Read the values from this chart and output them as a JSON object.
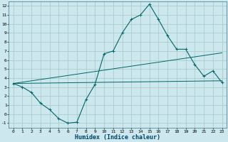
{
  "xlabel": "Humidex (Indice chaleur)",
  "bg_color": "#cce8ee",
  "grid_color": "#aacccc",
  "line_color": "#006666",
  "xlim": [
    -0.5,
    23.5
  ],
  "ylim": [
    -1.5,
    12.5
  ],
  "xticks": [
    0,
    1,
    2,
    3,
    4,
    5,
    6,
    7,
    8,
    9,
    10,
    11,
    12,
    13,
    14,
    15,
    16,
    17,
    18,
    19,
    20,
    21,
    22,
    23
  ],
  "yticks": [
    -1,
    0,
    1,
    2,
    3,
    4,
    5,
    6,
    7,
    8,
    9,
    10,
    11,
    12
  ],
  "curve1_x": [
    0,
    1,
    2,
    3,
    4,
    5,
    6,
    7,
    8,
    9,
    10,
    11,
    12,
    13,
    14,
    15,
    16,
    17,
    18,
    19,
    20,
    21,
    22,
    23
  ],
  "curve1_y": [
    3.4,
    3.0,
    2.4,
    1.2,
    0.5,
    -0.5,
    -1.0,
    -0.9,
    1.6,
    3.3,
    6.7,
    7.0,
    9.0,
    10.5,
    11.0,
    12.2,
    10.5,
    8.7,
    7.2,
    7.2,
    5.5,
    4.2,
    4.8,
    3.5
  ],
  "curve2_x": [
    0,
    23
  ],
  "curve2_y": [
    3.4,
    6.8
  ],
  "curve3_x": [
    0,
    23
  ],
  "curve3_y": [
    3.4,
    3.7
  ],
  "xlabel_fontsize": 6,
  "tick_fontsize": 4.5
}
